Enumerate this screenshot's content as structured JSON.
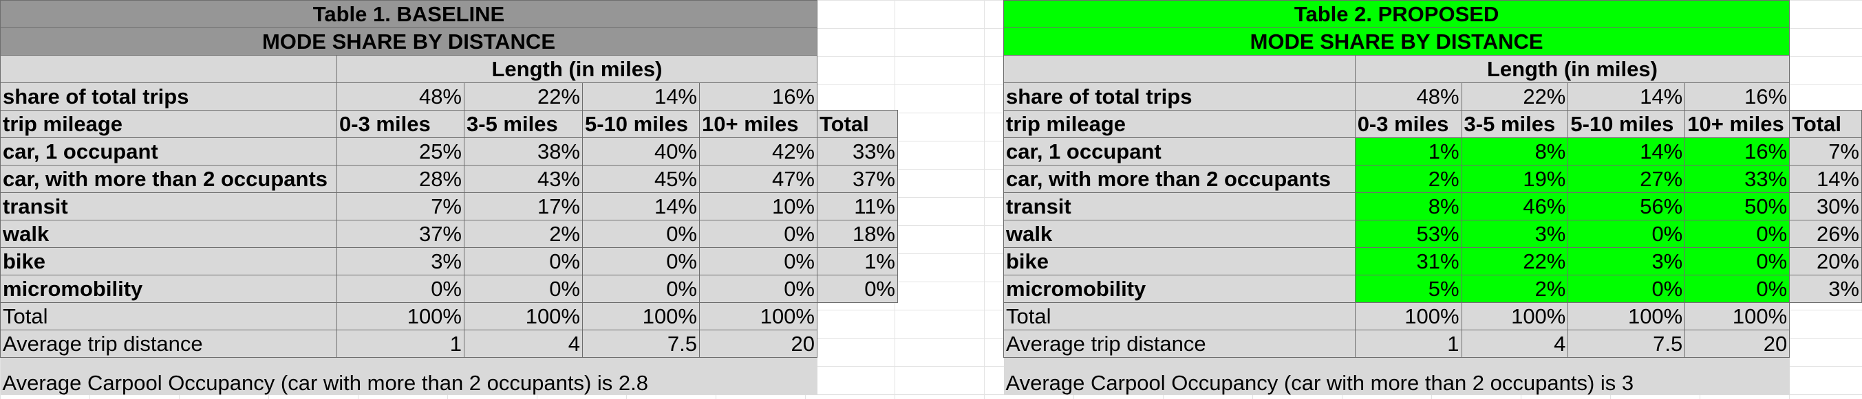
{
  "table1": {
    "title": "Table 1. BASELINE",
    "subtitle": "MODE SHARE BY DISTANCE",
    "length_header": "Length (in miles)",
    "share_label": "share of total trips",
    "shares": [
      "48%",
      "22%",
      "14%",
      "16%"
    ],
    "mileage_label": "trip mileage",
    "columns": [
      "0-3 miles",
      "3-5 miles",
      "5-10 miles",
      "10+ miles",
      "Total"
    ],
    "rows": [
      {
        "label": "car, 1 occupant",
        "values": [
          "25%",
          "38%",
          "40%",
          "42%",
          "33%"
        ]
      },
      {
        "label": "car, with more than 2 occupants",
        "values": [
          "28%",
          "43%",
          "45%",
          "47%",
          "37%"
        ]
      },
      {
        "label": "transit",
        "values": [
          "7%",
          "17%",
          "14%",
          "10%",
          "11%"
        ]
      },
      {
        "label": "walk",
        "values": [
          "37%",
          "2%",
          "0%",
          "0%",
          "18%"
        ]
      },
      {
        "label": "bike",
        "values": [
          "3%",
          "0%",
          "0%",
          "0%",
          "1%"
        ]
      },
      {
        "label": "micromobility",
        "values": [
          "0%",
          "0%",
          "0%",
          "0%",
          "0%"
        ]
      }
    ],
    "total_label": "Total",
    "totals": [
      "100%",
      "100%",
      "100%",
      "100%"
    ],
    "avg_label": "Average trip distance",
    "avg": [
      "1",
      "4",
      "7.5",
      "20"
    ],
    "note": "Average Carpool Occupancy (car with more than 2 occupants) is 2.8"
  },
  "table2": {
    "title": "Table 2. PROPOSED",
    "subtitle": "MODE SHARE BY DISTANCE",
    "length_header": "Length (in miles)",
    "share_label": "share of total trips",
    "shares": [
      "48%",
      "22%",
      "14%",
      "16%"
    ],
    "mileage_label": "trip mileage",
    "columns": [
      "0-3 miles",
      "3-5 miles",
      "5-10 miles",
      "10+ miles",
      "Total"
    ],
    "rows": [
      {
        "label": "car, 1 occupant",
        "values": [
          "1%",
          "8%",
          "14%",
          "16%",
          "7%"
        ]
      },
      {
        "label": "car, with more than 2 occupants",
        "values": [
          "2%",
          "19%",
          "27%",
          "33%",
          "14%"
        ]
      },
      {
        "label": "transit",
        "values": [
          "8%",
          "46%",
          "56%",
          "50%",
          "30%"
        ]
      },
      {
        "label": "walk",
        "values": [
          "53%",
          "3%",
          "0%",
          "0%",
          "26%"
        ]
      },
      {
        "label": "bike",
        "values": [
          "31%",
          "22%",
          "3%",
          "0%",
          "20%"
        ]
      },
      {
        "label": "micromobility",
        "values": [
          "5%",
          "2%",
          "0%",
          "0%",
          "3%"
        ]
      }
    ],
    "total_label": "Total",
    "totals": [
      "100%",
      "100%",
      "100%",
      "100%"
    ],
    "avg_label": "Average trip distance",
    "avg": [
      "1",
      "4",
      "7.5",
      "20"
    ],
    "note": "Average Carpool Occupancy (car with more than 2 occupants) is 3"
  },
  "colors": {
    "baseline_header": "#969696",
    "proposed_header": "#00ff00",
    "cell_background": "#d9d9d9",
    "highlight": "#00ff00"
  }
}
